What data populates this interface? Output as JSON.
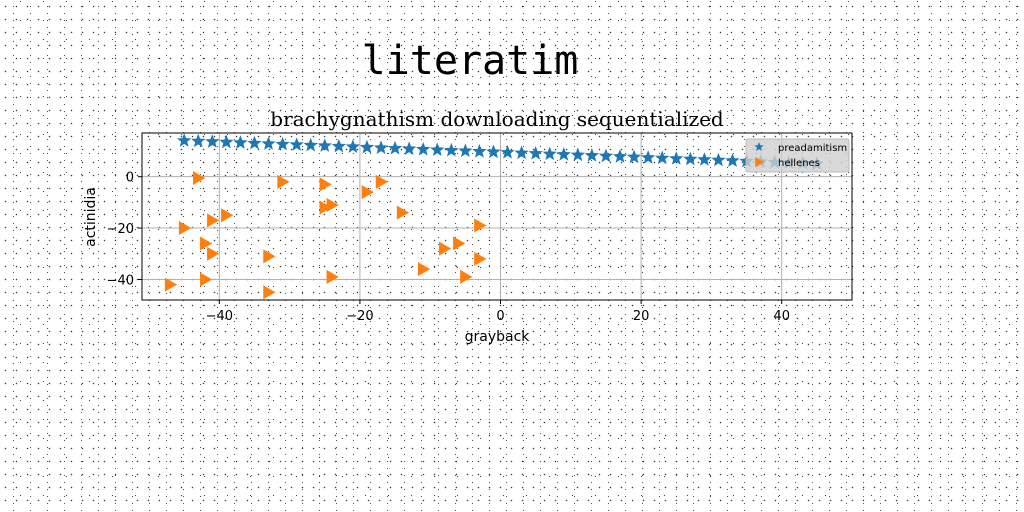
{
  "suptitle": "literatim",
  "chart_data": {
    "type": "scatter",
    "title": "brachygnathism downloading sequentialized",
    "xlabel": "grayback",
    "ylabel": "actinidia",
    "xlim": [
      -51,
      50
    ],
    "ylim": [
      -48,
      17
    ],
    "xticks": [
      -40,
      -20,
      0,
      20,
      40
    ],
    "yticks": [
      0,
      -20,
      -40
    ],
    "grid": true,
    "legend_position": "upper-right",
    "series": [
      {
        "name": "preadamitism",
        "marker": "star",
        "color": "#1f77b4",
        "x": [
          -45,
          -43,
          -41,
          -39,
          -37,
          -35,
          -33,
          -31,
          -29,
          -27,
          -25,
          -23,
          -21,
          -19,
          -17,
          -15,
          -13,
          -11,
          -9,
          -7,
          -5,
          -3,
          -1,
          1,
          3,
          5,
          7,
          9,
          11,
          13,
          15,
          17,
          19,
          21,
          23,
          25,
          27,
          29,
          31,
          33,
          35,
          37,
          39,
          41,
          43,
          45
        ],
        "y": [
          14.0,
          13.8,
          13.6,
          13.4,
          13.2,
          13.0,
          12.8,
          12.6,
          12.4,
          12.2,
          12.0,
          11.8,
          11.6,
          11.4,
          11.2,
          11.0,
          10.8,
          10.6,
          10.4,
          10.2,
          10.0,
          9.8,
          9.6,
          9.4,
          9.2,
          9.0,
          8.8,
          8.6,
          8.4,
          8.2,
          8.0,
          7.8,
          7.6,
          7.4,
          7.2,
          7.0,
          6.8,
          6.6,
          6.4,
          6.2,
          6.0,
          5.8,
          5.6,
          5.4,
          5.2,
          5.0
        ]
      },
      {
        "name": "hellenes",
        "marker": "triangle-right",
        "color": "#ff7f0e",
        "x": [
          -43,
          -31,
          -25,
          -17,
          -19,
          -25,
          -24,
          -14,
          -41,
          -39,
          -45,
          -42,
          -41,
          -33,
          -8,
          -6,
          -3,
          -11,
          -24,
          -5,
          -3,
          -42,
          -47,
          -33
        ],
        "y": [
          -0.5,
          -2,
          -3,
          -2,
          -6,
          -12,
          -11,
          -14,
          -17,
          -15,
          -20,
          -26,
          -30,
          -31,
          -28,
          -26,
          -19,
          -36,
          -39,
          -39,
          -32,
          -40,
          -42,
          -45
        ]
      }
    ]
  }
}
